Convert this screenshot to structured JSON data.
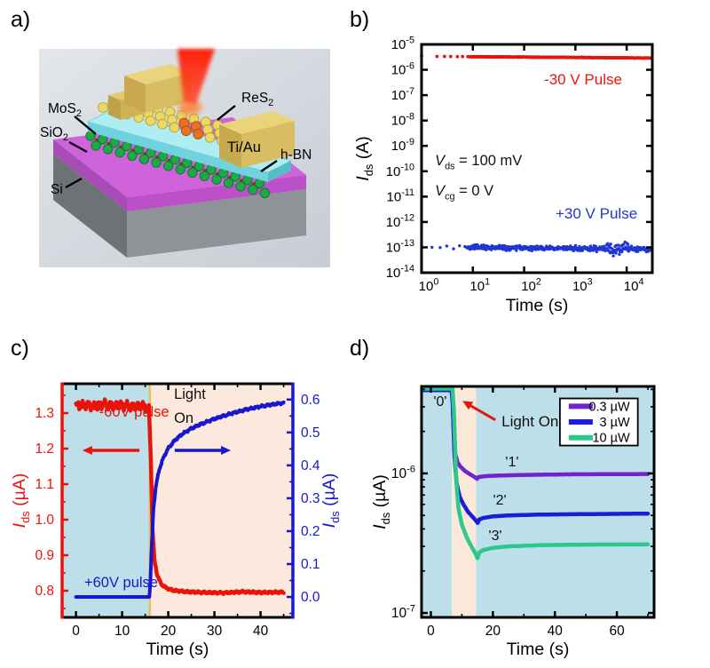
{
  "panel_labels": {
    "a": "a)",
    "b": "b)",
    "c": "c)",
    "d": "d)"
  },
  "panels": {
    "a": {
      "labels": {
        "mos2": {
          "base": "MoS",
          "sub": "2"
        },
        "sio2": {
          "base": "SiO",
          "sub": "2"
        },
        "si": {
          "base": "Si",
          "sub": ""
        },
        "res2": {
          "base": "ReS",
          "sub": "2"
        },
        "tiau": {
          "base": "Ti/Au",
          "sub": ""
        },
        "hbn": {
          "base": "h-BN",
          "sub": ""
        }
      },
      "colors": {
        "si": "#7d8286",
        "sio2": "#cf63dc",
        "hbn": "#79d7e0",
        "mos2_atom": "#1fa848",
        "res2_atom": "#ead964",
        "electrode": "#d9bd62",
        "laser": "#ff1c08"
      }
    }
  },
  "chart_data": [
    {
      "panel": "b",
      "type": "scatter",
      "x_axis": {
        "label": "Time (s)",
        "scale": "log",
        "min_exp": 0,
        "max_exp": 4.5,
        "tick_exponents": [
          0,
          1,
          2,
          3,
          4
        ]
      },
      "y_axis": {
        "label_var": "I",
        "label_sub": "ds",
        "label_unit": " (A)",
        "scale": "log",
        "min_exp": -14,
        "max_exp": -5,
        "tick_exponents": [
          -5,
          -6,
          -7,
          -8,
          -9,
          -10,
          -11,
          -12,
          -13,
          -14
        ]
      },
      "series": [
        {
          "name": "-30 V Pulse",
          "color": "#e8140c",
          "marker": "dot",
          "start_A": 3.4e-06,
          "end_A": 2.9e-06,
          "noise_decades": 0.008,
          "t_start": 1,
          "t_end": 30000,
          "lead_ts": [
            1,
            2,
            2.8,
            3.7,
            5,
            6.3,
            8
          ],
          "n_dense": 320,
          "r": 1.9
        },
        {
          "name": "+30 V Pulse",
          "color": "#2036d4",
          "marker": "dot",
          "start_A": 1.05e-13,
          "end_A": 8.5e-14,
          "noise_decades": 0.11,
          "t_start": 1,
          "t_end": 30000,
          "lead_ts": [
            1,
            1.6,
            2.3,
            3.1,
            4.2,
            5.5,
            7
          ],
          "n_dense": 430,
          "r": 1.7,
          "burst": {
            "t1": 3600,
            "t2": 12000,
            "factor": 2.6
          }
        }
      ],
      "annotations": [
        {
          "text": "-30 V Pulse",
          "color": "#e8140c",
          "fx": 0.7,
          "fy": 0.175,
          "size": 17,
          "anchor": "middle"
        },
        {
          "math": {
            "v": "V",
            "sub": "ds",
            "rest": " = 100 mV"
          },
          "color": "#111111",
          "fx": 0.058,
          "fy": 0.53,
          "size": 16.5,
          "anchor": "start"
        },
        {
          "math": {
            "v": "V",
            "sub": "cg",
            "rest": " = 0 V"
          },
          "color": "#111111",
          "fx": 0.058,
          "fy": 0.662,
          "size": 16.5,
          "anchor": "start"
        },
        {
          "text": "+30 V Pulse",
          "color": "#2036d4",
          "fx": 0.758,
          "fy": 0.762,
          "size": 17,
          "anchor": "middle"
        }
      ]
    },
    {
      "panel": "c",
      "type": "line_dual_axis",
      "x_axis": {
        "label": "Time (s)",
        "min": -3,
        "max": 47,
        "ticks": [
          0,
          10,
          20,
          30,
          40
        ],
        "minor_step": 5
      },
      "y_left": {
        "label_var": "I",
        "label_sub": "ds",
        "label_unit": " (µA)",
        "color": "#e8140c",
        "min": 0.725,
        "max": 1.3825,
        "ticks": [
          0.8,
          0.9,
          1.0,
          1.1,
          1.2,
          1.3
        ],
        "minor_step": 0.05
      },
      "y_right": {
        "label_var": "I",
        "label_sub": "ds",
        "label_unit": " (µA)",
        "color": "#1717cf",
        "min": -0.062,
        "max": 0.648,
        "ticks": [
          0.0,
          0.1,
          0.2,
          0.3,
          0.4,
          0.5,
          0.6
        ],
        "minor_step": 0.05
      },
      "light_on_time_s": 16,
      "regions": [
        {
          "from": -3,
          "to": 16,
          "color": "#bcdfe9"
        },
        {
          "from": 16,
          "to": 47,
          "color": "#fae9dc"
        }
      ],
      "boundary_line": {
        "x": 16,
        "color": "#efc05a",
        "width": 2.5
      },
      "series": [
        {
          "name": "-60V pulse",
          "axis": "left",
          "color": "#e8140c",
          "width": 4.5,
          "wiggle_before": 0.007,
          "wiggle_after": 0.0016,
          "wiggle_split": 15.8,
          "anchors": [
            [
              0,
              1.32
            ],
            [
              2,
              1.323
            ],
            [
              4,
              1.318
            ],
            [
              6,
              1.325
            ],
            [
              8,
              1.32
            ],
            [
              10,
              1.322
            ],
            [
              12,
              1.318
            ],
            [
              14,
              1.32
            ],
            [
              15.8,
              1.316
            ],
            [
              16.2,
              1.18
            ],
            [
              16.6,
              0.97
            ],
            [
              17.0,
              0.885
            ],
            [
              17.6,
              0.845
            ],
            [
              18.4,
              0.82
            ],
            [
              19.5,
              0.808
            ],
            [
              21,
              0.801
            ],
            [
              24,
              0.797
            ],
            [
              28,
              0.795
            ],
            [
              32,
              0.794
            ],
            [
              36,
              0.797
            ],
            [
              40,
              0.795
            ],
            [
              45,
              0.796
            ]
          ]
        },
        {
          "name": "+60V pulse",
          "axis": "right",
          "color": "#1717cf",
          "width": 4,
          "wiggle_before": 0.0,
          "wiggle_after": 0.002,
          "wiggle_split": 16.2,
          "anchors": [
            [
              0,
              0.0
            ],
            [
              15.9,
              0.0
            ],
            [
              16.1,
              0.04
            ],
            [
              16.4,
              0.15
            ],
            [
              16.8,
              0.27
            ],
            [
              17.3,
              0.335
            ],
            [
              18,
              0.385
            ],
            [
              19,
              0.425
            ],
            [
              20,
              0.452
            ],
            [
              21.5,
              0.477
            ],
            [
              23,
              0.495
            ],
            [
              25,
              0.512
            ],
            [
              27,
              0.525
            ],
            [
              29,
              0.536
            ],
            [
              31,
              0.546
            ],
            [
              34,
              0.559
            ],
            [
              37,
              0.57
            ],
            [
              40,
              0.579
            ],
            [
              43,
              0.586
            ],
            [
              45,
              0.59
            ]
          ]
        }
      ],
      "annotations": [
        {
          "text": "-60V pulse",
          "color": "#e8140c",
          "fx": 0.312,
          "fy": 0.141,
          "size": 16.5,
          "anchor": "middle"
        },
        {
          "text": "Light",
          "color": "#111111",
          "fx": 0.485,
          "fy": 0.065,
          "size": 16.5,
          "anchor": "start"
        },
        {
          "text": "On",
          "color": "#111111",
          "fx": 0.485,
          "fy": 0.167,
          "size": 16.5,
          "anchor": "start"
        },
        {
          "text": "+60V pulse",
          "color": "#1717cf",
          "fx": 0.096,
          "fy": 0.871,
          "size": 16.5,
          "anchor": "start"
        }
      ],
      "arrows": [
        {
          "color": "#e8140c",
          "x1f": 0.335,
          "y1f": 0.285,
          "x2f": 0.088,
          "y2f": 0.285
        },
        {
          "color": "#1717cf",
          "x1f": 0.488,
          "y1f": 0.285,
          "x2f": 0.731,
          "y2f": 0.285
        }
      ]
    },
    {
      "panel": "d",
      "type": "line_log",
      "x_axis": {
        "label": "Time (s)",
        "min": -3,
        "max": 72,
        "ticks": [
          0,
          20,
          40,
          60
        ],
        "minor_ticks": [
          10,
          30,
          50,
          70
        ]
      },
      "y_axis": {
        "label_var": "I",
        "label_sub": "ds",
        "label_unit": " (µA)",
        "min_uA": 0.093,
        "max_uA": 4.2,
        "ticks": [
          {
            "exp": -6,
            "value_uA": 1
          },
          {
            "exp": -7,
            "value_uA": 0.1
          }
        ],
        "minor_values_uA": [
          0.2,
          0.3,
          0.4,
          0.5,
          0.6,
          0.7,
          0.8,
          0.9,
          2,
          3,
          4
        ]
      },
      "light_on_time_s": 7,
      "regions": [
        {
          "from": -3,
          "to": 6.8,
          "color": "#bcdfe9"
        },
        {
          "from": 6.8,
          "to": 14.6,
          "color": "#fae8d8"
        },
        {
          "from": 14.6,
          "to": 72,
          "color": "#bcdfe9"
        }
      ],
      "series": [
        {
          "name": "0.3 µW",
          "color": "#6f24cf",
          "width": 4.5,
          "state_label": "'1'",
          "anchors": [
            [
              -2.5,
              4.0
            ],
            [
              6.6,
              4.0
            ],
            [
              7.0,
              3.4
            ],
            [
              7.4,
              1.9
            ],
            [
              7.9,
              1.38
            ],
            [
              8.6,
              1.2
            ],
            [
              9.5,
              1.12
            ],
            [
              11,
              1.04
            ],
            [
              12.5,
              0.99
            ],
            [
              14,
              0.945
            ],
            [
              14.9,
              0.915
            ],
            [
              15.3,
              0.94
            ],
            [
              16.5,
              0.95
            ],
            [
              18,
              0.957
            ],
            [
              22,
              0.965
            ],
            [
              30,
              0.975
            ],
            [
              45,
              0.985
            ],
            [
              70,
              0.99
            ]
          ]
        },
        {
          "name": "3 µW",
          "color": "#1d1dd8",
          "width": 4.5,
          "state_label": "'2'",
          "anchors": [
            [
              -2.5,
              3.95
            ],
            [
              6.7,
              3.95
            ],
            [
              7.1,
              3.0
            ],
            [
              7.6,
              1.35
            ],
            [
              8.3,
              0.85
            ],
            [
              9.3,
              0.68
            ],
            [
              10.5,
              0.6
            ],
            [
              12,
              0.53
            ],
            [
              13.5,
              0.487
            ],
            [
              14.8,
              0.452
            ],
            [
              15.1,
              0.44
            ],
            [
              15.6,
              0.468
            ],
            [
              17,
              0.48
            ],
            [
              20,
              0.492
            ],
            [
              25,
              0.5
            ],
            [
              35,
              0.507
            ],
            [
              50,
              0.511
            ],
            [
              70,
              0.515
            ]
          ]
        },
        {
          "name": "10 µW",
          "color": "#2dc98c",
          "width": 4.5,
          "state_label": "'3'",
          "anchors": [
            [
              -2.5,
              4.05
            ],
            [
              7.0,
              4.05
            ],
            [
              7.5,
              2.6
            ],
            [
              8.1,
              0.95
            ],
            [
              8.9,
              0.56
            ],
            [
              10,
              0.43
            ],
            [
              11.5,
              0.35
            ],
            [
              13,
              0.302
            ],
            [
              14.6,
              0.262
            ],
            [
              15.0,
              0.246
            ],
            [
              15.6,
              0.272
            ],
            [
              17,
              0.283
            ],
            [
              20,
              0.293
            ],
            [
              25,
              0.3
            ],
            [
              35,
              0.306
            ],
            [
              50,
              0.309
            ],
            [
              70,
              0.31
            ]
          ]
        }
      ],
      "legend": {
        "fx1": 0.595,
        "fy1": 0.052,
        "fx2": 0.93,
        "fy2": 0.256,
        "items": [
          {
            "label": "0.3 µW",
            "color": "#6f24cf"
          },
          {
            "label": "3 µW",
            "color": "#1d1dd8"
          },
          {
            "label": "10 µW",
            "color": "#2dc98c"
          }
        ]
      },
      "annotations": [
        {
          "text": "'0'",
          "color": "#111111",
          "fx": 0.08,
          "fy": 0.085,
          "size": 16,
          "anchor": "middle"
        },
        {
          "text": "'1'",
          "color": "#111111",
          "fx": 0.389,
          "fy": 0.346,
          "size": 16,
          "anchor": "middle"
        },
        {
          "text": "'2'",
          "color": "#111111",
          "fx": 0.336,
          "fy": 0.512,
          "size": 16,
          "anchor": "middle"
        },
        {
          "text": "'3'",
          "color": "#111111",
          "fx": 0.317,
          "fy": 0.665,
          "size": 16,
          "anchor": "middle"
        },
        {
          "text": "Light On",
          "color": "#111111",
          "fx": 0.344,
          "fy": 0.173,
          "size": 17,
          "anchor": "start"
        }
      ],
      "arrow": {
        "color": "#e8140c",
        "x1f": 0.317,
        "y1f": 0.145,
        "x2f": 0.176,
        "y2f": 0.063
      }
    }
  ]
}
